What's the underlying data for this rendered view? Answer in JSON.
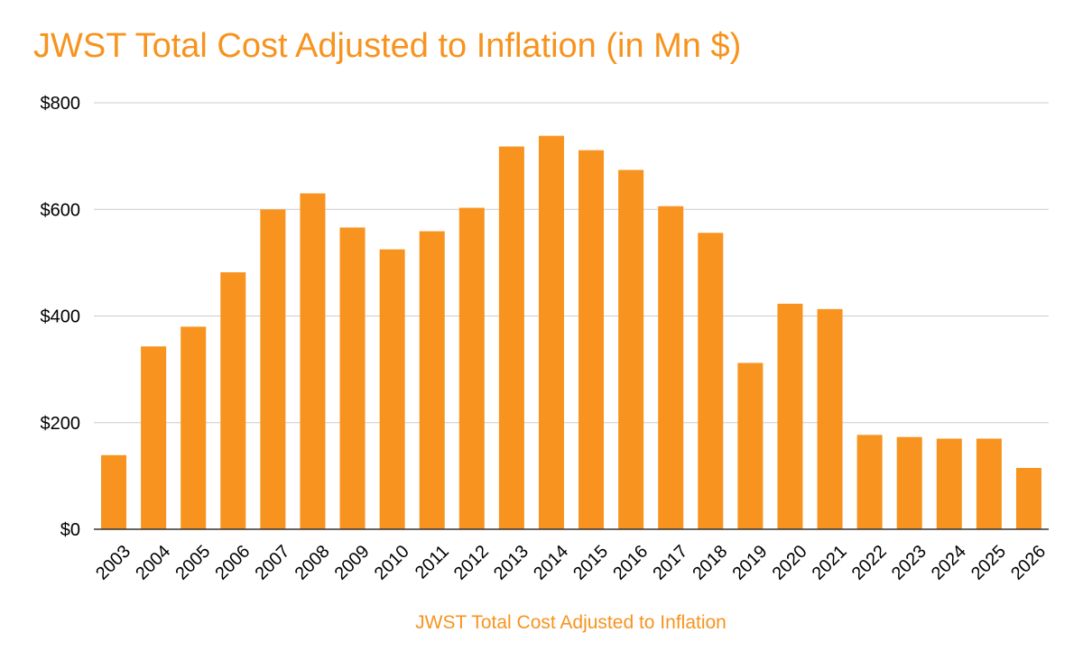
{
  "chart_data": {
    "type": "bar",
    "title": "JWST Total Cost Adjusted to Inflation (in Mn $)",
    "xlabel": "JWST Total Cost Adjusted to Inflation",
    "ylabel": "",
    "ylim": [
      0,
      800
    ],
    "y_ticks": [
      0,
      200,
      400,
      600,
      800
    ],
    "y_tick_labels": [
      "$0",
      "$200",
      "$400",
      "$600",
      "$800"
    ],
    "grid": true,
    "categories": [
      "2003",
      "2004",
      "2005",
      "2006",
      "2007",
      "2008",
      "2009",
      "2010",
      "2011",
      "2012",
      "2013",
      "2014",
      "2015",
      "2016",
      "2017",
      "2018",
      "2019",
      "2020",
      "2021",
      "2022",
      "2023",
      "2024",
      "2025",
      "2026"
    ],
    "values": [
      139,
      343,
      380,
      482,
      600,
      630,
      566,
      525,
      559,
      603,
      718,
      738,
      711,
      674,
      606,
      556,
      312,
      423,
      413,
      177,
      173,
      170,
      170,
      115
    ],
    "colors": {
      "bar": "#f7931e",
      "title": "#f7931e",
      "grid": "#cccccc",
      "axis": "#333333",
      "tick_text": "#000000"
    }
  }
}
